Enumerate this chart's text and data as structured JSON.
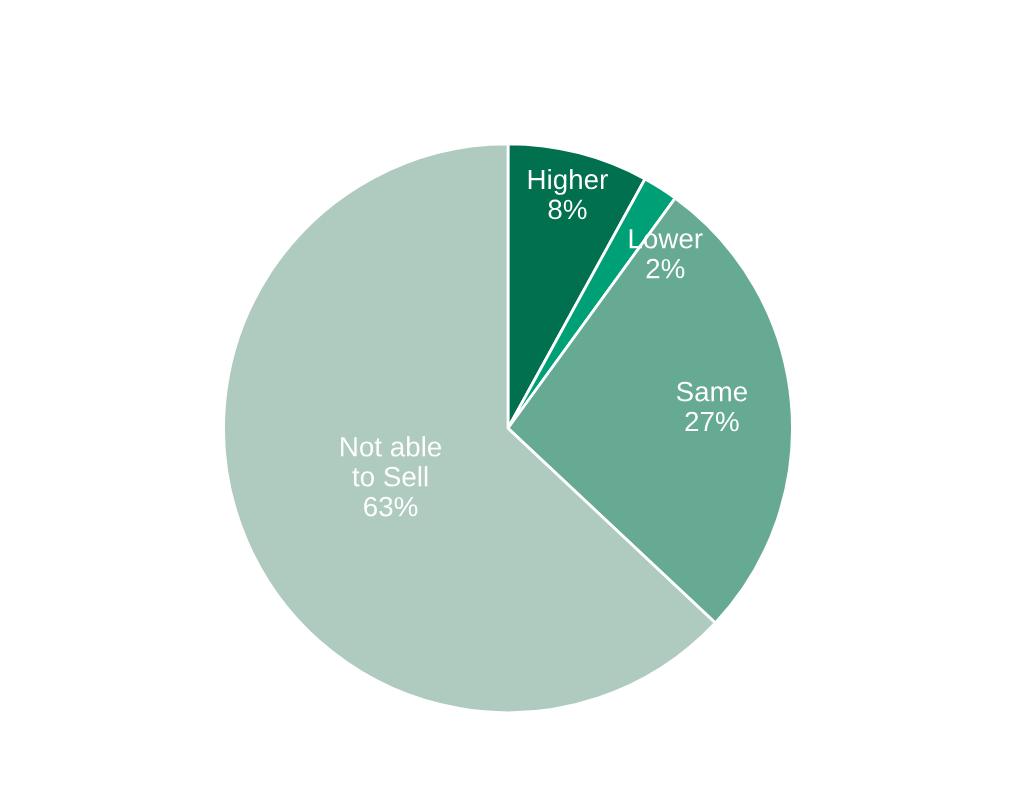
{
  "chart_data": {
    "type": "pie",
    "categories": [
      "Higher",
      "Lower",
      "Same",
      "Not able\nto Sell"
    ],
    "values": [
      8,
      2,
      27,
      63
    ],
    "value_labels": [
      "8%",
      "2%",
      "27%",
      "63%"
    ],
    "colors": [
      "#00704f",
      "#00a077",
      "#66aa93",
      "#afcbc0"
    ],
    "legend": false
  }
}
